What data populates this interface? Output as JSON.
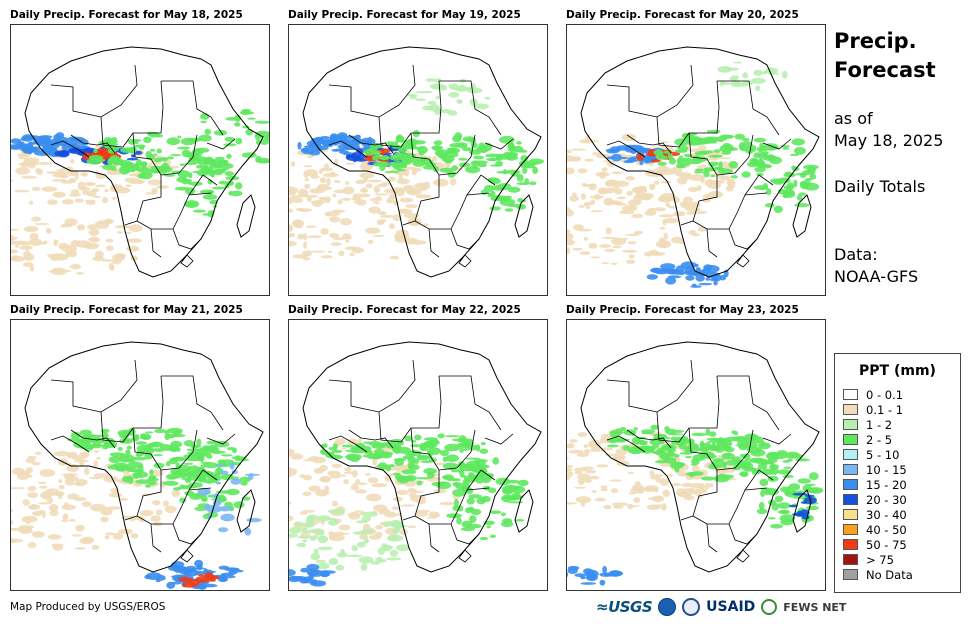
{
  "panels": [
    {
      "title": "Daily Precip. Forecast for May 18, 2025"
    },
    {
      "title": "Daily Precip. Forecast for May 19, 2025"
    },
    {
      "title": "Daily Precip. Forecast for May 20, 2025"
    },
    {
      "title": "Daily Precip. Forecast for May 21, 2025"
    },
    {
      "title": "Daily Precip. Forecast for May 22, 2025"
    },
    {
      "title": "Daily Precip. Forecast for May 23, 2025"
    }
  ],
  "side": {
    "title_line1": "Precip.",
    "title_line2": "Forecast",
    "as_of": "as of",
    "date": "May 18, 2025",
    "totals": "Daily Totals",
    "data_label": "Data:",
    "data_source": "NOAA-GFS"
  },
  "legend": {
    "title": "PPT (mm)",
    "items": [
      {
        "label": "0 - 0.1",
        "color": "#ffffff"
      },
      {
        "label": "0.1 - 1",
        "color": "#f0dcb8"
      },
      {
        "label": "1 - 2",
        "color": "#b8f0b0"
      },
      {
        "label": "2 - 5",
        "color": "#5ee85e"
      },
      {
        "label": "5 - 10",
        "color": "#b4f0f4"
      },
      {
        "label": "10 - 15",
        "color": "#7ab8f4"
      },
      {
        "label": "15 - 20",
        "color": "#3a8ef0"
      },
      {
        "label": "20 - 30",
        "color": "#1450e0"
      },
      {
        "label": "30 - 40",
        "color": "#f8e08c"
      },
      {
        "label": "40 - 50",
        "color": "#f8a020"
      },
      {
        "label": "50 - 75",
        "color": "#f03c14"
      },
      {
        "label": "> 75",
        "color": "#a01414"
      },
      {
        "label": "No Data",
        "color": "#a0a0a0"
      }
    ]
  },
  "footer": {
    "credit": "Map Produced by USGS/EROS"
  },
  "logos": {
    "usgs": "≈USGS",
    "usaid": "USAID",
    "fews": "FEWS NET"
  }
}
